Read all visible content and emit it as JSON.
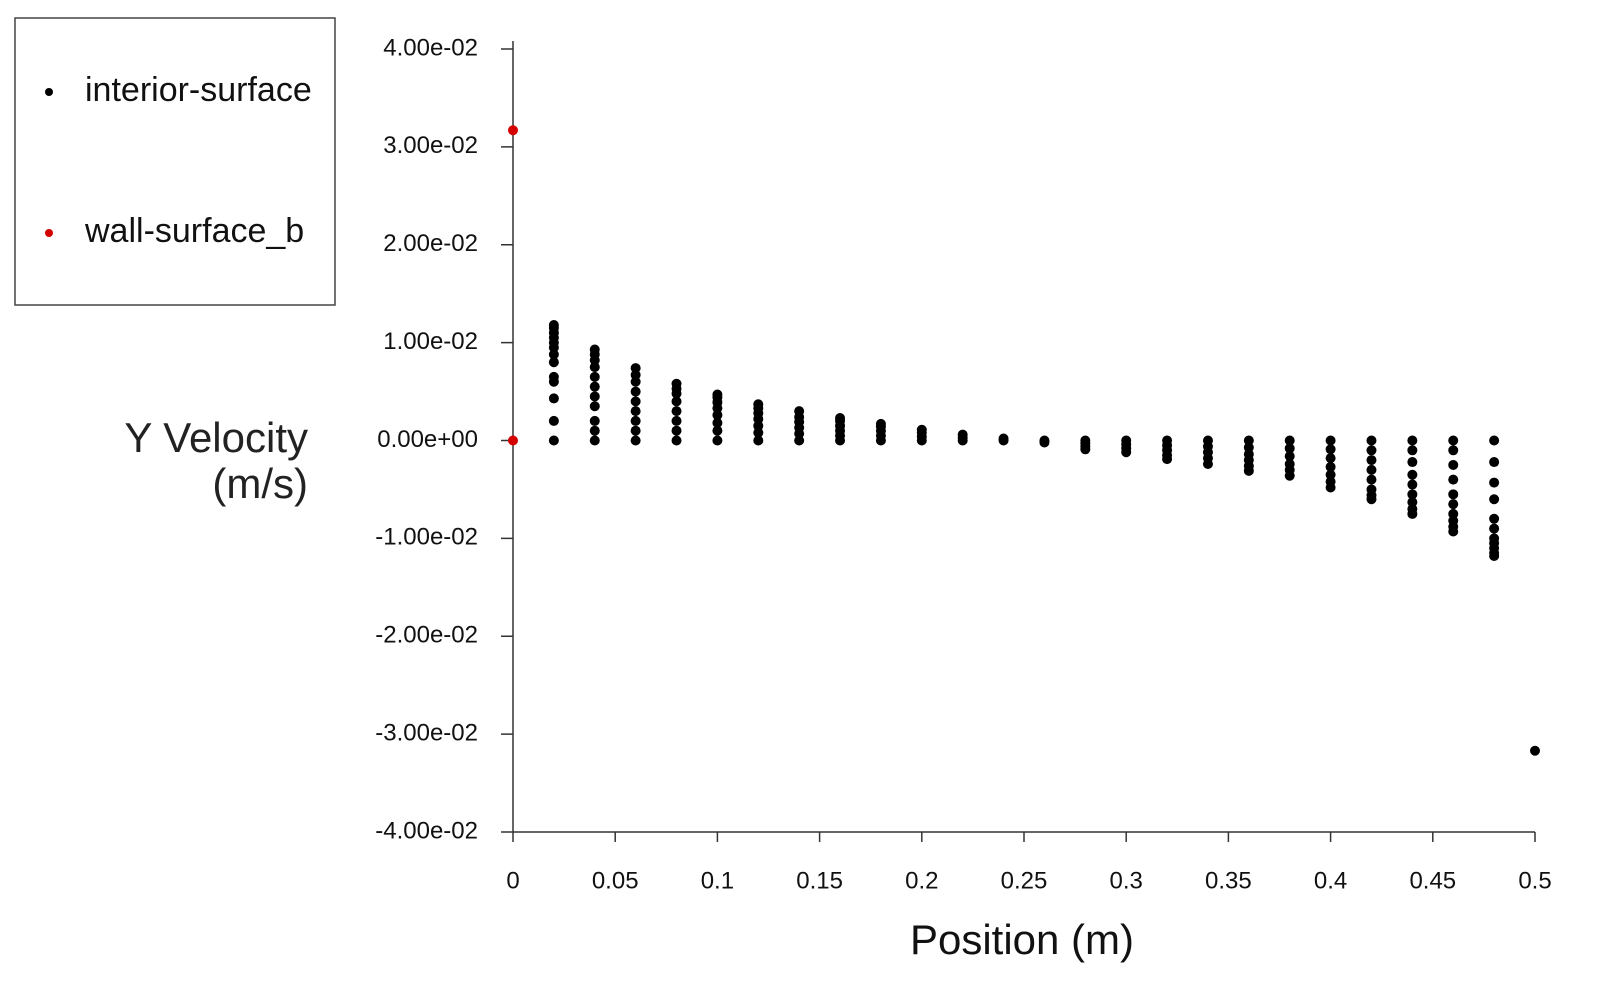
{
  "chart_data": {
    "type": "scatter",
    "x_label": "Position (m)",
    "y_label": "Y Velocity (m/s)",
    "xlim": [
      0,
      0.5
    ],
    "ylim": [
      -0.04,
      0.04
    ],
    "xticks": [
      0,
      0.05,
      0.1,
      0.15,
      0.2,
      0.25,
      0.3,
      0.35,
      0.4,
      0.45,
      0.5
    ],
    "yticks": [
      {
        "value": 0.04,
        "label": "4.00e-02"
      },
      {
        "value": 0.03,
        "label": "3.00e-02"
      },
      {
        "value": 0.02,
        "label": "2.00e-02"
      },
      {
        "value": 0.01,
        "label": "1.00e-02"
      },
      {
        "value": 0,
        "label": "0.00e+00"
      },
      {
        "value": -0.01,
        "label": "-1.00e-02"
      },
      {
        "value": -0.02,
        "label": "-2.00e-02"
      },
      {
        "value": -0.03,
        "label": "-3.00e-02"
      },
      {
        "value": -0.04,
        "label": "-4.00e-02"
      }
    ],
    "legend": "top-left",
    "series": [
      {
        "name": "interior-surface",
        "color": "#000000",
        "x": [
          0.02,
          0.02,
          0.02,
          0.02,
          0.02,
          0.02,
          0.02,
          0.02,
          0.02,
          0.02,
          0.02,
          0.02,
          0.02,
          0.04,
          0.04,
          0.04,
          0.04,
          0.04,
          0.04,
          0.04,
          0.04,
          0.04,
          0.04,
          0.04,
          0.06,
          0.06,
          0.06,
          0.06,
          0.06,
          0.06,
          0.06,
          0.06,
          0.06,
          0.08,
          0.08,
          0.08,
          0.08,
          0.08,
          0.08,
          0.08,
          0.08,
          0.1,
          0.1,
          0.1,
          0.1,
          0.1,
          0.1,
          0.1,
          0.1,
          0.12,
          0.12,
          0.12,
          0.12,
          0.12,
          0.12,
          0.12,
          0.14,
          0.14,
          0.14,
          0.14,
          0.14,
          0.14,
          0.16,
          0.16,
          0.16,
          0.16,
          0.16,
          0.16,
          0.18,
          0.18,
          0.18,
          0.18,
          0.18,
          0.2,
          0.2,
          0.2,
          0.2,
          0.22,
          0.22,
          0.22,
          0.24,
          0.24,
          0.26,
          0.26,
          0.28,
          0.28,
          0.28,
          0.28,
          0.3,
          0.3,
          0.3,
          0.3,
          0.32,
          0.32,
          0.32,
          0.32,
          0.32,
          0.34,
          0.34,
          0.34,
          0.34,
          0.34,
          0.36,
          0.36,
          0.36,
          0.36,
          0.36,
          0.36,
          0.38,
          0.38,
          0.38,
          0.38,
          0.38,
          0.38,
          0.4,
          0.4,
          0.4,
          0.4,
          0.4,
          0.4,
          0.4,
          0.42,
          0.42,
          0.42,
          0.42,
          0.42,
          0.42,
          0.42,
          0.42,
          0.44,
          0.44,
          0.44,
          0.44,
          0.44,
          0.44,
          0.44,
          0.44,
          0.44,
          0.46,
          0.46,
          0.46,
          0.46,
          0.46,
          0.46,
          0.46,
          0.46,
          0.46,
          0.46,
          0.48,
          0.48,
          0.48,
          0.48,
          0.48,
          0.48,
          0.48,
          0.48,
          0.48,
          0.48,
          0.48,
          0.5
        ],
        "values": [
          0,
          0.002,
          0.0043,
          0.006,
          0.0065,
          0.008,
          0.0088,
          0.0095,
          0.01,
          0.0105,
          0.011,
          0.0115,
          0.0118,
          0,
          0.001,
          0.002,
          0.0035,
          0.0045,
          0.0055,
          0.0065,
          0.0075,
          0.0082,
          0.0088,
          0.0093,
          0,
          0.001,
          0.002,
          0.003,
          0.004,
          0.005,
          0.006,
          0.0067,
          0.0074,
          0,
          0.001,
          0.002,
          0.003,
          0.004,
          0.0048,
          0.0053,
          0.0058,
          0,
          0.001,
          0.0018,
          0.0026,
          0.0033,
          0.0039,
          0.0044,
          0.0047,
          0,
          0.0008,
          0.0015,
          0.0022,
          0.0028,
          0.0033,
          0.0037,
          0,
          0.0007,
          0.0013,
          0.0019,
          0.0024,
          0.003,
          0,
          0.0005,
          0.001,
          0.0015,
          0.002,
          0.0023,
          0,
          0.0005,
          0.001,
          0.0014,
          0.0017,
          0,
          0.0004,
          0.0008,
          0.0011,
          0,
          0.0003,
          0.0006,
          0,
          0.0002,
          0,
          -0.0002,
          0,
          -0.0003,
          -0.0006,
          -0.0009,
          0,
          -0.0004,
          -0.0008,
          -0.0012,
          0,
          -0.0005,
          -0.001,
          -0.0015,
          -0.0019,
          0,
          -0.0006,
          -0.0012,
          -0.0018,
          -0.0024,
          0,
          -0.0007,
          -0.0014,
          -0.002,
          -0.0026,
          -0.0031,
          0,
          -0.0008,
          -0.0016,
          -0.0024,
          -0.003,
          -0.0036,
          0,
          -0.0009,
          -0.0018,
          -0.0027,
          -0.0035,
          -0.0042,
          -0.0048,
          0,
          -0.001,
          -0.002,
          -0.003,
          -0.004,
          -0.005,
          -0.0056,
          -0.006,
          0,
          -0.001,
          -0.0022,
          -0.0035,
          -0.0045,
          -0.0055,
          -0.0063,
          -0.007,
          -0.0075,
          0,
          -0.001,
          -0.0025,
          -0.004,
          -0.0055,
          -0.0065,
          -0.0075,
          -0.0082,
          -0.0088,
          -0.0093,
          0,
          -0.0022,
          -0.0043,
          -0.006,
          -0.008,
          -0.009,
          -0.01,
          -0.0105,
          -0.011,
          -0.0115,
          -0.0118,
          -0.0317
        ]
      },
      {
        "name": "wall-surface_b",
        "color": "#d40000",
        "x": [
          0,
          0
        ],
        "values": [
          0.0317,
          0
        ]
      }
    ]
  }
}
